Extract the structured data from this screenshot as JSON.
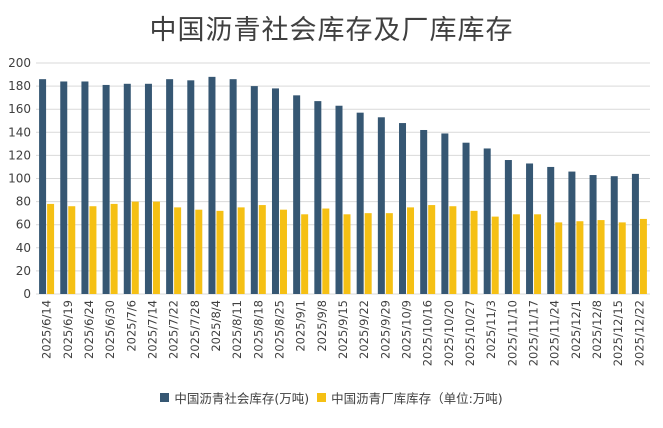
{
  "chart_data": {
    "type": "bar",
    "title": "中国沥青社会库存及厂库库存",
    "xlabel": "",
    "ylabel": "",
    "ylim": [
      0,
      200
    ],
    "yticks": [
      0,
      20,
      40,
      60,
      80,
      100,
      120,
      140,
      160,
      180,
      200
    ],
    "grid": true,
    "legend_position": "bottom",
    "categories": [
      "2025/6/14",
      "2025/6/19",
      "2025/6/24",
      "2025/6/30",
      "2025/7/6",
      "2025/7/14",
      "2025/7/22",
      "2025/7/28",
      "2025/8/4",
      "2025/8/11",
      "2025/8/18",
      "2025/8/25",
      "2025/9/1",
      "2025/9/8",
      "2025/9/15",
      "2025/9/22",
      "2025/9/29",
      "2025/10/9",
      "2025/10/16",
      "2025/10/20",
      "2025/10/27",
      "2025/11/3",
      "2025/11/10",
      "2025/11/17",
      "2025/11/24",
      "2025/12/1",
      "2025/12/8",
      "2025/12/15",
      "2025/12/22"
    ],
    "series": [
      {
        "name": "中国沥青社会库存(万吨)",
        "color": "#365773",
        "values": [
          186,
          184,
          184,
          181,
          182,
          182,
          186,
          185,
          188,
          186,
          180,
          178,
          172,
          167,
          163,
          157,
          153,
          148,
          142,
          139,
          131,
          126,
          116,
          113,
          110,
          106,
          103,
          102,
          104
        ]
      },
      {
        "name": "中国沥青厂库库存（单位:万吨)",
        "color": "#f5c014",
        "values": [
          78,
          76,
          76,
          78,
          80,
          80,
          75,
          73,
          72,
          75,
          77,
          73,
          69,
          74,
          69,
          70,
          70,
          75,
          77,
          76,
          72,
          67,
          69,
          69,
          62,
          63,
          64,
          62,
          65
        ]
      }
    ]
  }
}
